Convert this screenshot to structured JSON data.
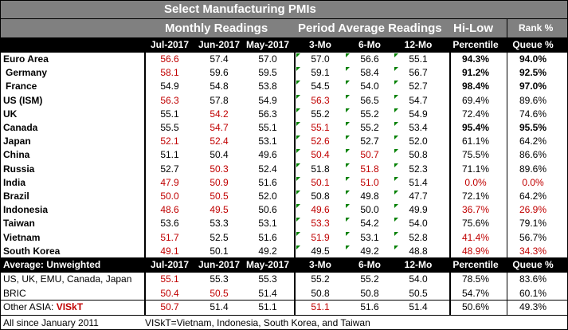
{
  "title": "Select Manufacturing PMIs",
  "groups": {
    "monthly": "Monthly Readings",
    "period": "Period Average Readings",
    "hilow": "Hi-Low",
    "rank": "Rank %"
  },
  "headers": [
    "Jul-2017",
    "Jun-2017",
    "May-2017",
    "3-Mo",
    "6-Mo",
    "12-Mo",
    "Percentile",
    "Queue %"
  ],
  "rows": [
    {
      "label": "Euro Area",
      "v": [
        "56.6",
        "57.4",
        "57.0",
        "57.0",
        "56.6",
        "55.1",
        "94.3%",
        "94.0%"
      ],
      "red": [
        0
      ],
      "bold": [
        6,
        7
      ]
    },
    {
      "label": "Germany",
      "v": [
        "58.1",
        "59.6",
        "59.5",
        "59.1",
        "58.4",
        "56.7",
        "91.2%",
        "92.5%"
      ],
      "red": [
        0
      ],
      "bold": [
        6,
        7
      ]
    },
    {
      "label": "France",
      "v": [
        "54.9",
        "54.8",
        "53.8",
        "54.5",
        "54.0",
        "52.7",
        "98.4%",
        "97.0%"
      ],
      "red": [],
      "bold": [
        6,
        7
      ]
    },
    {
      "label": "US (ISM)",
      "v": [
        "56.3",
        "57.8",
        "54.9",
        "56.3",
        "56.5",
        "54.7",
        "69.4%",
        "89.6%"
      ],
      "red": [
        0,
        3
      ],
      "bold": []
    },
    {
      "label": "UK",
      "v": [
        "55.1",
        "54.2",
        "56.3",
        "55.2",
        "55.2",
        "54.9",
        "72.4%",
        "74.6%"
      ],
      "red": [
        1
      ],
      "bold": []
    },
    {
      "label": "Canada",
      "v": [
        "55.5",
        "54.7",
        "55.1",
        "55.1",
        "55.2",
        "53.4",
        "95.4%",
        "95.5%"
      ],
      "red": [
        1,
        3
      ],
      "bold": [
        6,
        7
      ]
    },
    {
      "label": "Japan",
      "v": [
        "52.1",
        "52.4",
        "53.1",
        "52.6",
        "52.7",
        "52.0",
        "61.1%",
        "64.2%"
      ],
      "red": [
        0,
        1,
        3
      ],
      "bold": []
    },
    {
      "label": "China",
      "v": [
        "51.1",
        "50.4",
        "49.6",
        "50.4",
        "50.7",
        "50.8",
        "75.5%",
        "86.6%"
      ],
      "red": [
        3,
        4
      ],
      "bold": []
    },
    {
      "label": "Russia",
      "v": [
        "52.7",
        "50.3",
        "52.4",
        "51.8",
        "51.8",
        "52.3",
        "71.1%",
        "89.6%"
      ],
      "red": [
        1,
        4
      ],
      "bold": []
    },
    {
      "label": "India",
      "v": [
        "47.9",
        "50.9",
        "51.6",
        "50.1",
        "51.0",
        "51.4",
        "0.0%",
        "0.0%"
      ],
      "red": [
        0,
        1,
        3,
        4,
        6,
        7
      ],
      "bold": []
    },
    {
      "label": "Brazil",
      "v": [
        "50.0",
        "50.5",
        "52.0",
        "50.8",
        "49.8",
        "47.7",
        "72.1%",
        "64.2%"
      ],
      "red": [
        0,
        1
      ],
      "bold": []
    },
    {
      "label": "Indonesia",
      "v": [
        "48.6",
        "49.5",
        "50.6",
        "49.6",
        "50.0",
        "49.9",
        "36.7%",
        "26.9%"
      ],
      "red": [
        0,
        1,
        3,
        6,
        7
      ],
      "bold": []
    },
    {
      "label": "Taiwan",
      "v": [
        "53.6",
        "53.3",
        "53.1",
        "53.3",
        "54.2",
        "54.0",
        "75.6%",
        "79.1%"
      ],
      "red": [
        3
      ],
      "bold": []
    },
    {
      "label": "Vietnam",
      "v": [
        "51.7",
        "52.5",
        "51.6",
        "51.9",
        "53.1",
        "52.8",
        "41.4%",
        "56.7%"
      ],
      "red": [
        0,
        3,
        6
      ],
      "bold": []
    },
    {
      "label": "South Korea",
      "v": [
        "49.1",
        "50.1",
        "49.2",
        "49.5",
        "49.2",
        "48.8",
        "48.9%",
        "34.3%"
      ],
      "red": [
        0,
        6,
        7
      ],
      "bold": []
    }
  ],
  "average": {
    "label": "Average: Unweighted",
    "headers": [
      "Jul-2017",
      "Jun-2017",
      "May-2017",
      "3-Mo",
      "6-Mo",
      "12-Mo",
      "Percentile",
      "Queue %"
    ],
    "rows": [
      {
        "label": "US, UK, EMU, Canada, Japan",
        "v": [
          "55.1",
          "55.3",
          "55.3",
          "55.2",
          "55.2",
          "54.0",
          "78.5%",
          "83.6%"
        ],
        "red": [
          0
        ]
      },
      {
        "label": "BRIC",
        "v": [
          "50.4",
          "50.5",
          "51.4",
          "50.8",
          "50.8",
          "50.5",
          "54.7%",
          "60.1%"
        ],
        "red": [
          0,
          1
        ]
      },
      {
        "label": "Other ASIA: ",
        "label_red": "VISkT",
        "v": [
          "50.7",
          "51.4",
          "51.1",
          "51.1",
          "51.6",
          "51.4",
          "50.6%",
          "49.3%"
        ],
        "red": [
          0,
          3
        ]
      }
    ]
  },
  "footer": {
    "left": "All since January 2011",
    "right": "VISkT=Vietnam, Indonesia, South Korea, and Taiwan"
  }
}
